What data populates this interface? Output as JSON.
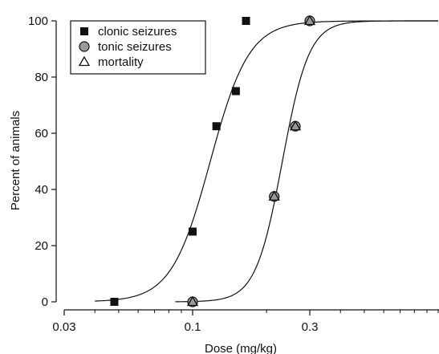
{
  "chart_data": {
    "type": "scatter",
    "xlabel": "Dose (mg/kg)",
    "ylabel": "Percent of animals",
    "x_scale": "log",
    "xlim": [
      0.03,
      1.0
    ],
    "ylim": [
      0,
      100
    ],
    "x_ticks": [
      0.03,
      0.1,
      0.3
    ],
    "x_tick_labels": [
      "0.03",
      "0.1",
      "0.3"
    ],
    "y_ticks": [
      0,
      20,
      40,
      60,
      80,
      100
    ],
    "y_tick_labels": [
      "0",
      "20",
      "40",
      "60",
      "80",
      "100"
    ],
    "grid": false,
    "legend_position": "top-left",
    "series": [
      {
        "name": "clonic seizures",
        "marker": "filled-square",
        "color": "#111111",
        "x": [
          0.048,
          0.1,
          0.125,
          0.15,
          0.165
        ],
        "y": [
          0,
          25,
          62.5,
          75,
          100
        ]
      },
      {
        "name": "tonic seizures",
        "marker": "gray-circle",
        "color": "#888888",
        "x": [
          0.1,
          0.215,
          0.262,
          0.3
        ],
        "y": [
          0,
          37.5,
          62.5,
          100
        ]
      },
      {
        "name": "mortality",
        "marker": "open-triangle",
        "color": "#111111",
        "x": [
          0.1,
          0.215,
          0.262,
          0.3
        ],
        "y": [
          0,
          37.5,
          62.5,
          100
        ]
      }
    ],
    "curves": [
      {
        "fits": "clonic seizures",
        "ed50": 0.118,
        "hill_slope": 5.5,
        "x_start": 0.04,
        "x_end": 1.0
      },
      {
        "fits": "tonic seizures",
        "ed50": 0.232,
        "hill_slope": 8.0,
        "x_start": 0.085,
        "x_end": 1.0
      }
    ]
  }
}
